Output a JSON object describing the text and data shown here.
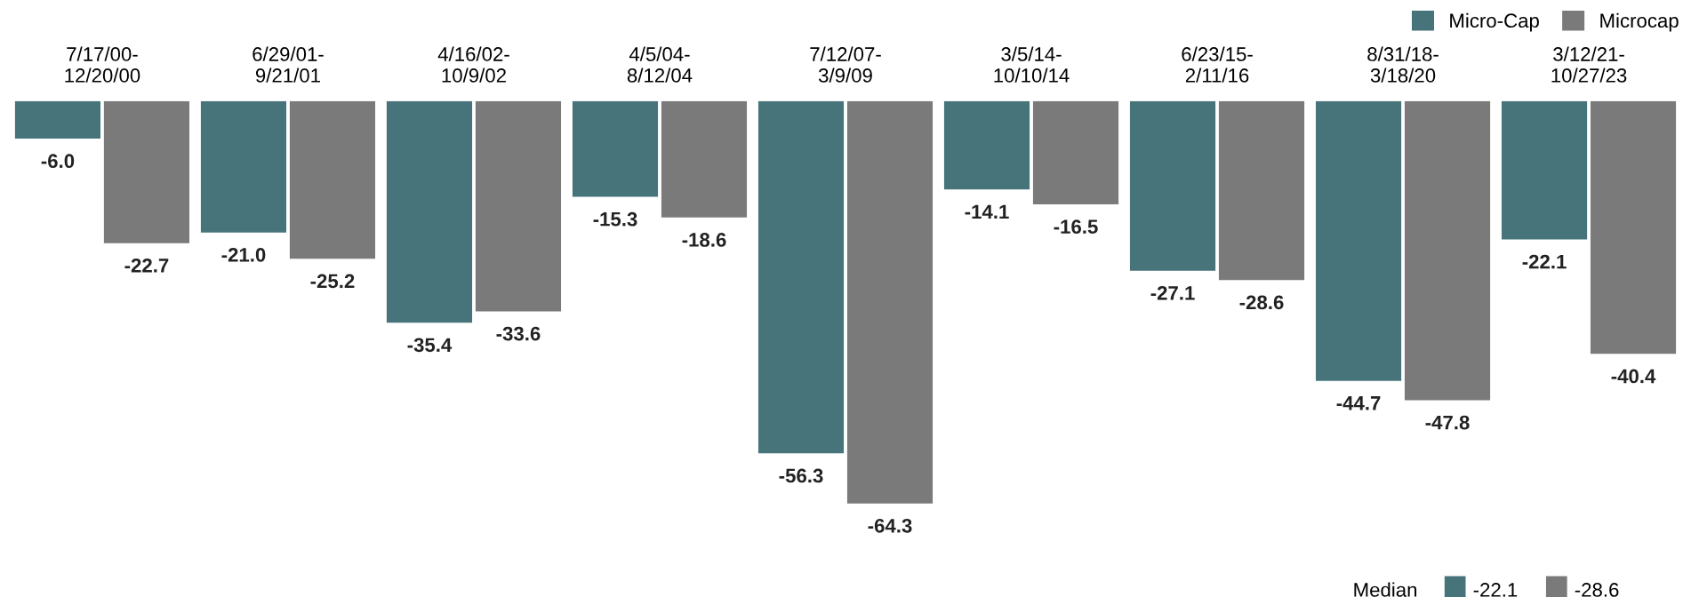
{
  "chart_data": {
    "type": "bar",
    "categories": [
      "7/17/00-\n12/20/00",
      "6/29/01-\n9/21/01",
      "4/16/02-\n10/9/02",
      "4/5/04-\n8/12/04",
      "7/12/07-\n3/9/09",
      "3/5/14-\n10/10/14",
      "6/23/15-\n2/11/16",
      "8/31/18-\n3/18/20",
      "3/12/21-\n10/27/23"
    ],
    "series": [
      {
        "name": "Micro-Cap",
        "color": "#47747a",
        "values": [
          -6.0,
          -21.0,
          -35.4,
          -15.3,
          -56.3,
          -14.1,
          -27.1,
          -44.7,
          -22.1
        ],
        "value_labels": [
          "-6.0",
          "-21.0",
          "-35.4",
          "-15.3",
          "-56.3",
          "-14.1",
          "-27.1",
          "-44.7",
          "-22.1"
        ]
      },
      {
        "name": "Microcap",
        "color": "#7a7a7a",
        "values": [
          -22.7,
          -25.2,
          -33.6,
          -18.6,
          -64.3,
          -16.5,
          -28.6,
          -47.8,
          -40.4
        ],
        "value_labels": [
          "-22.7",
          "-25.2",
          "-33.6",
          "-18.6",
          "-64.3",
          "-16.5",
          "-28.6",
          "-47.8",
          "-40.4"
        ]
      }
    ],
    "legend": "top right",
    "grid": false,
    "annotations": [
      "Median",
      "-22.1",
      "-28.6"
    ]
  }
}
